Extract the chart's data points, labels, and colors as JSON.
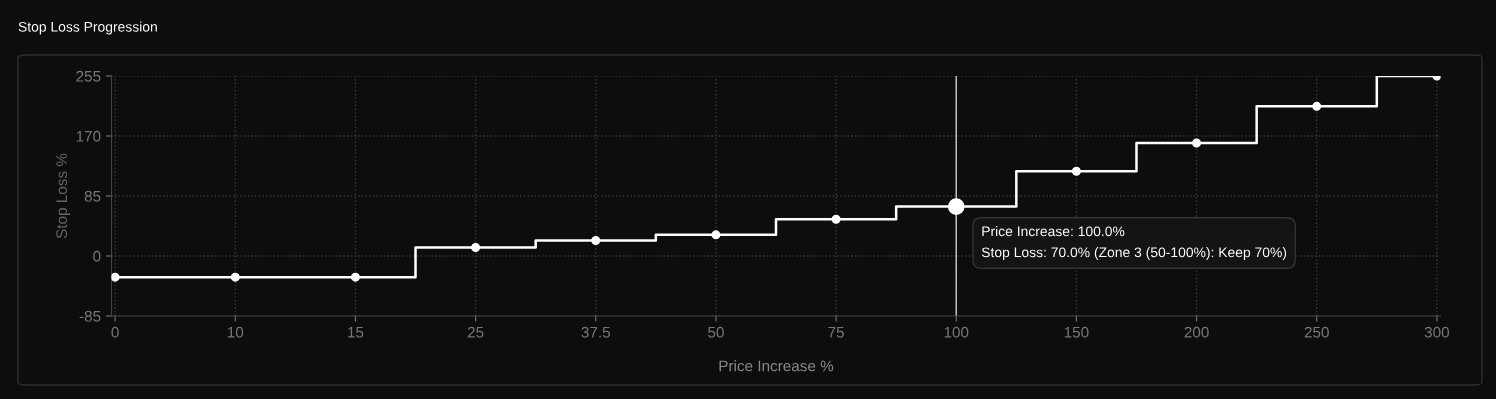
{
  "chart_data": {
    "type": "step",
    "title": "Stop Loss Progression",
    "xlabel": "Price Increase %",
    "ylabel": "Stop Loss %",
    "categories": [
      "0",
      "10",
      "15",
      "25",
      "37.5",
      "50",
      "75",
      "100",
      "150",
      "200",
      "250",
      "300"
    ],
    "series": [
      {
        "color": "#ffffff",
        "values": [
          -30,
          -30,
          -30,
          12,
          22,
          30,
          52,
          70,
          120,
          160,
          212,
          255
        ]
      }
    ],
    "ylim": [
      -85,
      255
    ],
    "yticks": [
      -85,
      0,
      85,
      170,
      255
    ],
    "grid": true,
    "marker": "circle",
    "line_style": "solid",
    "ref_lines": [
      {
        "axis": "x",
        "value": "100",
        "color": "#cccccc"
      }
    ],
    "annotations": [
      {
        "text": "Price Increase: 100.0%\nStop Loss: 70.0% (Zone 3 (50-100%): Keep 70%)",
        "x": "100",
        "y": 70
      }
    ]
  }
}
